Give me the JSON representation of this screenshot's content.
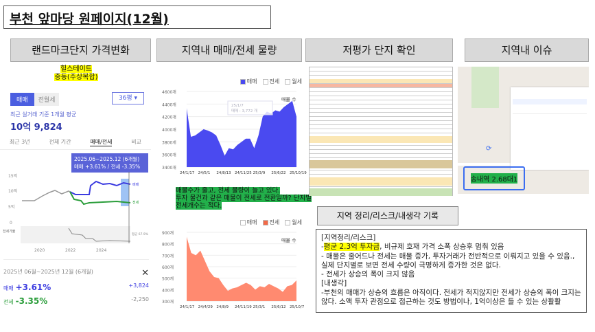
{
  "title": "부천 앞마당 원페이지(12월)",
  "headers": [
    "랜드마크단지 가격변화",
    "지역내 매매/전세 물량",
    "저평가 단지 확인",
    "지역내 이슈"
  ],
  "landmark": {
    "complex_name": "힐스테이트",
    "complex_sub": "중동(주상복합)",
    "tabs": [
      "매매",
      "전월세"
    ],
    "size_select": "36평",
    "avg_label": "최근 실거래 기준 1개월 평균",
    "avg_price": "10억 9,824",
    "period_tabs": [
      "최근 3년",
      "전체 기간",
      "매매/전세",
      "비교"
    ],
    "tooltip_period": "2025.06~2025.12 (6개월)",
    "tooltip_values": "매매 +3.61% / 전세 -3.35%",
    "y_ticks": [
      "15억",
      "10억",
      "5억",
      "0"
    ],
    "x_ticks": [
      "2020",
      "2022",
      "2024"
    ],
    "line_labels": [
      "매매",
      "전세"
    ],
    "ratio_label": "전세가율",
    "ratio_value": "평균 67.9%",
    "summary_period": "2025년 06월~2025년 12월 (6개월)",
    "rows": [
      {
        "label": "매매",
        "pct": "+3.61%",
        "amount": "+3,824"
      },
      {
        "label": "전세",
        "pct": "-3.35%",
        "amount": "-2,250"
      }
    ],
    "colors": {
      "sale": "#3b3be0",
      "jeonse": "#2a9d3a"
    }
  },
  "note_middle": [
    "매물수가 줄고, 전세 물량이 늘고 있다.",
    "투자 물건과 같은 매물이 전세로 전환일까? 단지별",
    "전세개수는 적다."
  ],
  "map": {
    "callout": "송내역 2.68대1"
  },
  "notes": {
    "header": "지역 정리/리스크/내생각 기록",
    "lines": [
      "[지역정리/리스크]",
      "-",
      "평균 2.3억 투자금",
      ", 비규제 호재 가격 소폭 상승후 멈춰 있음",
      "- 매물은 줄어드나 전세는 매물 증가, 투자거래가 전반적으로 이뤄지고 있을 수 있음., 실제 단지별로 보면 전세 수량이 극명하게 증가한 것은 없다.",
      "- 전세가 상승의 폭이 크지 않음",
      "[내생각]",
      "-부천의 매매가 상승의 흐름은 아직이다. 전세가 적지않지만 전세가 상승의 폭이 크지는 않다. 소액 투자 관점으로 접근하는 것도 방법이나, 1억이상은 들 수 있는 상활활"
    ]
  },
  "chart_data": [
    {
      "type": "area",
      "title": "매물 수",
      "legend": [
        "매매",
        "전세",
        "월세"
      ],
      "active": "매매",
      "color": "#4a4af0",
      "ylim": [
        3400,
        4600
      ],
      "y_ticks": [
        "4600개",
        "4400개",
        "4200개",
        "4000개",
        "3800개",
        "3600개",
        "3400개"
      ],
      "x_ticks": [
        "24/1/17",
        "24/5/1",
        "24/8/13",
        "24/11/25",
        "25/3/9",
        "25/6/22",
        "25/10/19"
      ],
      "tooltip": [
        "25/1/7",
        "매매 : 3,772 개"
      ],
      "values": [
        4330,
        3880,
        3900,
        3950,
        4000,
        3980,
        3950,
        3900,
        3750,
        3580,
        3700,
        3680,
        3750,
        3800,
        3850,
        3850,
        3700,
        3900,
        4200,
        4280,
        4250,
        4300,
        4280,
        4350,
        4400,
        4450,
        4200
      ]
    },
    {
      "type": "area",
      "title": "매물 수",
      "legend": [
        "매매",
        "전세",
        "월세"
      ],
      "active": "전세",
      "color": "#ff8a70",
      "ylim": [
        300,
        900
      ],
      "y_ticks": [
        "900개",
        "800개",
        "700개",
        "600개",
        "500개",
        "400개",
        "300개"
      ],
      "x_ticks": [
        "24/1/17",
        "24/4/29",
        "24/8/9",
        "24/11/19",
        "25/3/1",
        "25/6/12",
        "25/10/7"
      ],
      "values": [
        860,
        720,
        700,
        740,
        650,
        560,
        510,
        500,
        440,
        390,
        410,
        420,
        440,
        460,
        440,
        400,
        430,
        420,
        450,
        430,
        410,
        380,
        430,
        440,
        480
      ]
    }
  ]
}
